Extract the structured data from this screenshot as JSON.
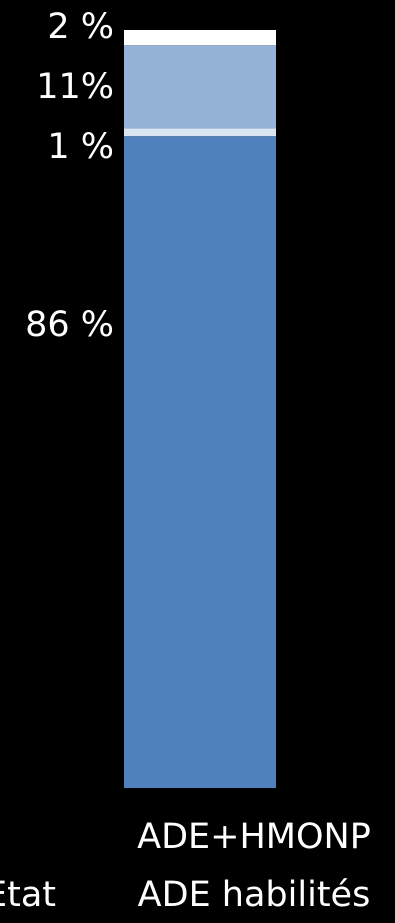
{
  "chart_data": {
    "type": "bar",
    "stacked": true,
    "categories": [
      "ADE+HMONP\nADE habilités"
    ],
    "category_lines": [
      "ADE+HMONP",
      "ADE habilités"
    ],
    "left_cutoff_label": "Etat",
    "series": [
      {
        "value": 86,
        "label": "86 %",
        "color": "#4f81bd"
      },
      {
        "value": 1,
        "label": "1 %",
        "color": "#dbe5f1"
      },
      {
        "value": 11,
        "label": "11%",
        "color": "#95b3d7"
      },
      {
        "value": 2,
        "label": "2 %",
        "color": "#ffffff"
      }
    ],
    "ylim": [
      0,
      100
    ]
  }
}
